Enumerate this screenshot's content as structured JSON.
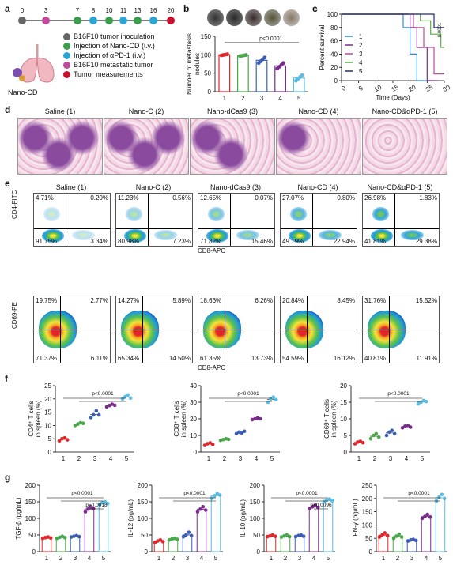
{
  "panels": {
    "a": {
      "letter": "a",
      "days": [
        "0",
        "3",
        "7",
        "8",
        "10",
        "11",
        "13",
        "16",
        "20"
      ],
      "legend": [
        {
          "text": "B16F10 tumor inoculation",
          "color": "#666666"
        },
        {
          "text": "Injection of Nano-CD (i.v.)",
          "color": "#3a9e4a"
        },
        {
          "text": "Injection of αPD-1 (i.v.)",
          "color": "#2aa6d6"
        },
        {
          "text": "B16F10 metastatic tumor",
          "color": "#c04a9e"
        },
        {
          "text": "Tumor measurements",
          "color": "#c8102e"
        }
      ],
      "nano_label": "Nano-CD"
    },
    "b": {
      "letter": "b"
    },
    "c": {
      "letter": "c",
      "pvalue": "0.0001"
    },
    "d": {
      "letter": "d",
      "titles": [
        "Saline (1)",
        "Nano-C (2)",
        "Nano-dCas9 (3)",
        "Nano-CD (4)",
        "Nano-CD&αPD-1 (5)"
      ]
    },
    "e": {
      "letter": "e",
      "titles": [
        "Saline (1)",
        "Nano-C (2)",
        "Nano-dCas9 (3)",
        "Nano-CD (4)",
        "Nano-CD&αPD-1 (5)"
      ],
      "row1_ylabel": "CD4-FITC",
      "row1_xlabel": "CD8-APC",
      "row2_ylabel": "CD69-PE",
      "row2_xlabel": "CD8-APC",
      "row1": [
        [
          "4.71%",
          "0.20%",
          "91.75%",
          "3.34%"
        ],
        [
          "11.23%",
          "0.56%",
          "80.98%",
          "7.23%"
        ],
        [
          "12.65%",
          "0.07%",
          "71.82%",
          "15.46%"
        ],
        [
          "27.07%",
          "0.80%",
          "49.19%",
          "22.94%"
        ],
        [
          "26.98%",
          "1.83%",
          "41.81%",
          "29.38%"
        ]
      ],
      "row2": [
        [
          "19.75%",
          "2.77%",
          "71.37%",
          "6.11%"
        ],
        [
          "14.27%",
          "5.89%",
          "65.34%",
          "14.50%"
        ],
        [
          "18.66%",
          "6.26%",
          "61.35%",
          "13.73%"
        ],
        [
          "20.84%",
          "8.45%",
          "54.59%",
          "16.12%"
        ],
        [
          "31.76%",
          "15.52%",
          "40.81%",
          "11.91%"
        ]
      ]
    },
    "f": {
      "letter": "f"
    },
    "g": {
      "letter": "g"
    }
  },
  "colors": [
    "#e0252b",
    "#4aa84a",
    "#3c5fb5",
    "#7a2c8c",
    "#5bbde0"
  ],
  "chart_data": [
    {
      "id": "b",
      "type": "bar",
      "categories": [
        "1",
        "2",
        "3",
        "4",
        "5"
      ],
      "values": [
        100,
        98,
        85,
        70,
        37
      ],
      "ylabel": "Number of metastasis nodules",
      "ylim": [
        0,
        150
      ],
      "yticks": [
        "0",
        "50",
        "100",
        "150"
      ],
      "pvalue": "p<0.0001"
    },
    {
      "id": "c",
      "type": "line",
      "xlabel": "Time (Days)",
      "ylabel": "Percent survival",
      "xlim": [
        0,
        30
      ],
      "ylim": [
        0,
        100
      ],
      "xticks": [
        "0",
        "5",
        "10",
        "15",
        "20",
        "25",
        "30"
      ],
      "yticks": [
        "0",
        "20",
        "40",
        "60",
        "80",
        "100"
      ],
      "series": [
        {
          "name": "1",
          "x": [
            0,
            18,
            18,
            20,
            20,
            22,
            22,
            26
          ],
          "values": [
            100,
            100,
            80,
            80,
            40,
            40,
            0,
            0
          ]
        },
        {
          "name": "2",
          "x": [
            0,
            20,
            20,
            22,
            22,
            25,
            25,
            28
          ],
          "values": [
            100,
            100,
            80,
            80,
            50,
            50,
            0,
            0
          ]
        },
        {
          "name": "3",
          "x": [
            0,
            21,
            21,
            24,
            24,
            27,
            27,
            30
          ],
          "values": [
            100,
            100,
            80,
            80,
            50,
            50,
            10,
            10
          ]
        },
        {
          "name": "4",
          "x": [
            0,
            23,
            23,
            26,
            26,
            29,
            29,
            30
          ],
          "values": [
            100,
            100,
            90,
            90,
            70,
            70,
            50,
            50
          ]
        },
        {
          "name": "5",
          "x": [
            0,
            27,
            27,
            30
          ],
          "values": [
            100,
            100,
            80,
            80
          ]
        }
      ]
    },
    {
      "id": "f1",
      "type": "scatter",
      "ylabel": "CD4⁺ T cells in spleen (%)",
      "ylim": [
        0,
        25
      ],
      "yticks": [
        "0",
        "5",
        "10",
        "15",
        "20",
        "25"
      ],
      "categories": [
        "1",
        "2",
        "3",
        "4",
        "5"
      ],
      "values": [
        [
          4.2,
          5,
          5.3,
          4.6
        ],
        [
          10,
          10.5,
          11,
          10.8
        ],
        [
          13,
          14,
          15.5,
          14
        ],
        [
          17,
          17.5,
          18,
          17.6
        ],
        [
          20,
          20.8,
          21.5,
          20.3
        ]
      ],
      "pvalue": "p<0.0001"
    },
    {
      "id": "f2",
      "type": "scatter",
      "ylabel": "CD8⁺ T cells in spleen (%)",
      "ylim": [
        0,
        40
      ],
      "yticks": [
        "0",
        "10",
        "20",
        "30",
        "40"
      ],
      "categories": [
        "1",
        "2",
        "3",
        "4",
        "5"
      ],
      "values": [
        [
          4,
          5,
          5.5,
          4.5
        ],
        [
          7,
          7.5,
          8,
          7.6
        ],
        [
          11,
          12,
          11.5,
          12.5
        ],
        [
          19.5,
          20,
          20.5,
          20
        ],
        [
          30,
          32,
          33,
          31.5
        ]
      ],
      "pvalue": "p<0.0001"
    },
    {
      "id": "f3",
      "type": "scatter",
      "ylabel": "CD69⁺ T cells in spleen (%)",
      "ylim": [
        0,
        20
      ],
      "yticks": [
        "0",
        "5",
        "10",
        "15",
        "20"
      ],
      "categories": [
        "1",
        "2",
        "3",
        "4",
        "5"
      ],
      "values": [
        [
          2.5,
          3,
          3.2,
          2.8
        ],
        [
          4,
          5,
          5.5,
          4.5
        ],
        [
          5,
          6,
          6.5,
          5.5
        ],
        [
          7.3,
          7.8,
          8,
          7.5
        ],
        [
          14.5,
          15,
          15.5,
          15.2
        ]
      ],
      "pvalue": "p<0.0001"
    },
    {
      "id": "g1",
      "type": "scatter",
      "ylabel": "TGF-β (pg/mL)",
      "ylim": [
        0,
        200
      ],
      "yticks": [
        "0",
        "50",
        "100",
        "150",
        "200"
      ],
      "categories": [
        "1",
        "2",
        "3",
        "4",
        "5"
      ],
      "values": [
        [
          40,
          42,
          44,
          41
        ],
        [
          40,
          43,
          46,
          42
        ],
        [
          44,
          46,
          48,
          45
        ],
        [
          120,
          128,
          135,
          130
        ],
        [
          142,
          147,
          150,
          145
        ]
      ],
      "pvalue": "p<0.0001",
      "pvalue2": "p=0.0018"
    },
    {
      "id": "g2",
      "type": "scatter",
      "ylabel": "IL-12 (pg/mL)",
      "ylim": [
        0,
        200
      ],
      "yticks": [
        "0",
        "50",
        "100",
        "150",
        "200"
      ],
      "categories": [
        "1",
        "2",
        "3",
        "4",
        "5"
      ],
      "values": [
        [
          28,
          32,
          35,
          30
        ],
        [
          35,
          38,
          40,
          37
        ],
        [
          45,
          50,
          58,
          48
        ],
        [
          120,
          128,
          135,
          125
        ],
        [
          160,
          168,
          175,
          170
        ]
      ],
      "pvalue": "p<0.0001"
    },
    {
      "id": "g3",
      "type": "scatter",
      "ylabel": "IL-10 (pg/mL)",
      "ylim": [
        0,
        200
      ],
      "yticks": [
        "0",
        "50",
        "100",
        "150",
        "200"
      ],
      "categories": [
        "1",
        "2",
        "3",
        "4",
        "5"
      ],
      "values": [
        [
          45,
          47,
          50,
          46
        ],
        [
          44,
          47,
          50,
          45
        ],
        [
          45,
          48,
          50,
          46
        ],
        [
          130,
          135,
          140,
          133
        ],
        [
          150,
          155,
          158,
          153
        ]
      ],
      "pvalue": "p<0.0001",
      "pvalue2": "p=0.0096"
    },
    {
      "id": "g4",
      "type": "scatter",
      "ylabel": "IFN-γ (pg/mL)",
      "ylim": [
        0,
        250
      ],
      "yticks": [
        "0",
        "50",
        "100",
        "150",
        "200",
        "250"
      ],
      "categories": [
        "1",
        "2",
        "3",
        "4",
        "5"
      ],
      "values": [
        [
          55,
          62,
          70,
          60
        ],
        [
          50,
          58,
          65,
          55
        ],
        [
          40,
          44,
          46,
          42
        ],
        [
          125,
          132,
          140,
          130
        ],
        [
          190,
          205,
          215,
          200
        ]
      ],
      "pvalue": "p<0.0001"
    }
  ]
}
